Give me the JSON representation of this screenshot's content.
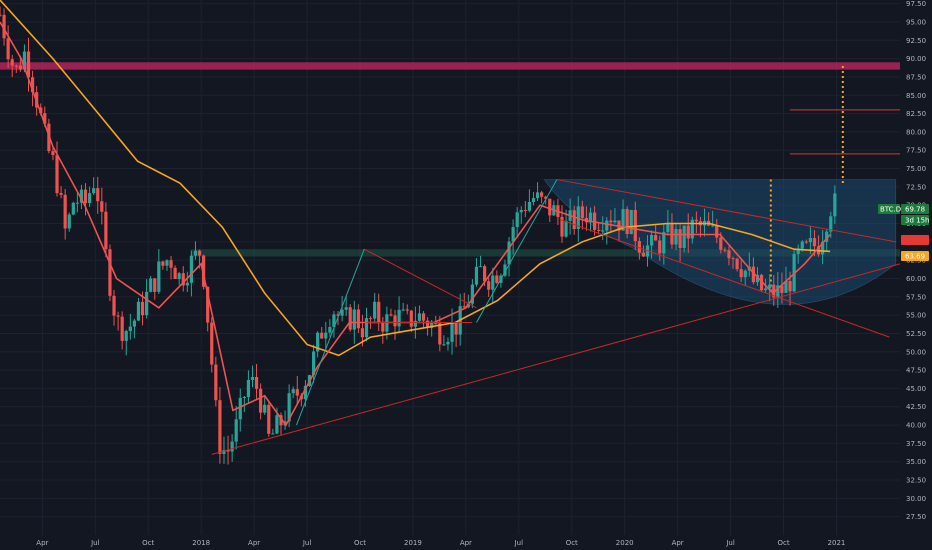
{
  "chart_data": {
    "type": "candlestick",
    "symbol_badge": "BTC.D",
    "last_price_label": "69.78",
    "countdown_label": "3d 15h",
    "ma_value_label": "63.69",
    "ylim": [
      25,
      98
    ],
    "y_ticks": [
      "97.50",
      "95.00",
      "92.50",
      "90.00",
      "87.50",
      "85.00",
      "82.50",
      "80.00",
      "77.50",
      "75.00",
      "72.50",
      "70.00",
      "67.50",
      "65.00",
      "62.50",
      "60.00",
      "57.50",
      "55.00",
      "52.50",
      "50.00",
      "47.50",
      "45.00",
      "42.50",
      "40.00",
      "37.50",
      "35.00",
      "32.50",
      "30.00",
      "27.50"
    ],
    "x_ticks": [
      {
        "label": "Apr",
        "t": 2017.25
      },
      {
        "label": "Jul",
        "t": 2017.5
      },
      {
        "label": "Oct",
        "t": 2017.75
      },
      {
        "label": "2018",
        "t": 2018.0
      },
      {
        "label": "Apr",
        "t": 2018.25
      },
      {
        "label": "Jul",
        "t": 2018.5
      },
      {
        "label": "Oct",
        "t": 2018.75
      },
      {
        "label": "2019",
        "t": 2019.0
      },
      {
        "label": "Apr",
        "t": 2019.25
      },
      {
        "label": "Jul",
        "t": 2019.5
      },
      {
        "label": "Oct",
        "t": 2019.75
      },
      {
        "label": "2020",
        "t": 2020.0
      },
      {
        "label": "Apr",
        "t": 2020.25
      },
      {
        "label": "Jul",
        "t": 2020.5
      },
      {
        "label": "Oct",
        "t": 2020.75
      },
      {
        "label": "2021",
        "t": 2021.0
      }
    ],
    "xlim": [
      2017.05,
      2021.3
    ],
    "price_path": [
      [
        2017.05,
        96
      ],
      [
        2017.12,
        88
      ],
      [
        2017.17,
        91
      ],
      [
        2017.22,
        85
      ],
      [
        2017.27,
        78
      ],
      [
        2017.31,
        75
      ],
      [
        2017.36,
        66
      ],
      [
        2017.4,
        71
      ],
      [
        2017.45,
        70
      ],
      [
        2017.5,
        74
      ],
      [
        2017.55,
        63
      ],
      [
        2017.6,
        54
      ],
      [
        2017.65,
        53
      ],
      [
        2017.7,
        55
      ],
      [
        2017.75,
        58
      ],
      [
        2017.8,
        61
      ],
      [
        2017.85,
        63
      ],
      [
        2017.9,
        60
      ],
      [
        2017.95,
        62
      ],
      [
        2018.0,
        64
      ],
      [
        2018.04,
        52
      ],
      [
        2018.08,
        38
      ],
      [
        2018.12,
        36
      ],
      [
        2018.17,
        40
      ],
      [
        2018.22,
        46
      ],
      [
        2018.27,
        45
      ],
      [
        2018.32,
        38
      ],
      [
        2018.37,
        40
      ],
      [
        2018.42,
        43
      ],
      [
        2018.47,
        45
      ],
      [
        2018.52,
        48
      ],
      [
        2018.57,
        53
      ],
      [
        2018.62,
        56
      ],
      [
        2018.67,
        54
      ],
      [
        2018.72,
        55
      ],
      [
        2018.77,
        53
      ],
      [
        2018.82,
        55
      ],
      [
        2018.87,
        54
      ],
      [
        2018.92,
        55
      ],
      [
        2018.97,
        54
      ],
      [
        2019.02,
        55
      ],
      [
        2019.07,
        54
      ],
      [
        2019.12,
        53
      ],
      [
        2019.17,
        53
      ],
      [
        2019.22,
        54
      ],
      [
        2019.27,
        58
      ],
      [
        2019.32,
        61
      ],
      [
        2019.37,
        60
      ],
      [
        2019.42,
        62
      ],
      [
        2019.47,
        67
      ],
      [
        2019.52,
        70
      ],
      [
        2019.57,
        71
      ],
      [
        2019.62,
        70
      ],
      [
        2019.67,
        69
      ],
      [
        2019.72,
        67
      ],
      [
        2019.77,
        68
      ],
      [
        2019.82,
        69
      ],
      [
        2019.87,
        68
      ],
      [
        2019.92,
        69
      ],
      [
        2019.97,
        68
      ],
      [
        2020.02,
        68
      ],
      [
        2020.07,
        65
      ],
      [
        2020.12,
        64
      ],
      [
        2020.17,
        65
      ],
      [
        2020.22,
        66
      ],
      [
        2020.27,
        65
      ],
      [
        2020.32,
        67
      ],
      [
        2020.37,
        67
      ],
      [
        2020.42,
        66
      ],
      [
        2020.47,
        65
      ],
      [
        2020.52,
        63
      ],
      [
        2020.57,
        61
      ],
      [
        2020.62,
        59
      ],
      [
        2020.67,
        58
      ],
      [
        2020.72,
        58
      ],
      [
        2020.77,
        59
      ],
      [
        2020.82,
        63
      ],
      [
        2020.87,
        64
      ],
      [
        2020.92,
        65
      ],
      [
        2020.97,
        70
      ]
    ],
    "annotations": {
      "resistance_band": [
        88.5,
        89.5
      ],
      "target_levels": [
        77.0,
        83.0
      ],
      "dotted_target_top": 89,
      "green_band": [
        63,
        64
      ]
    }
  }
}
